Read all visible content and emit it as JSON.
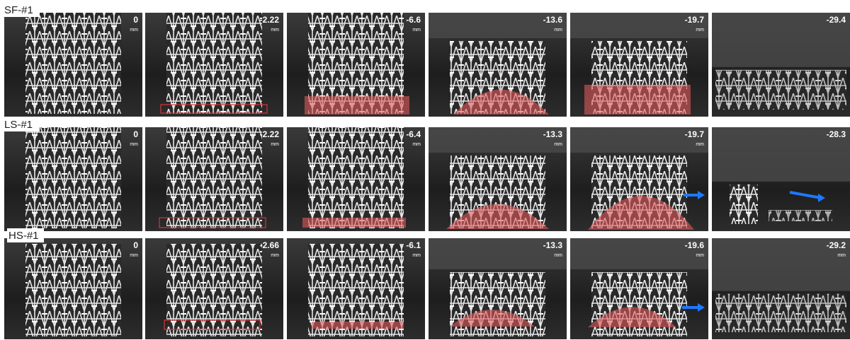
{
  "rows": [
    {
      "label": "SF-#1",
      "panels": [
        {
          "value": "0",
          "unit": "mm"
        },
        {
          "value": "-2.22",
          "unit": "mm"
        },
        {
          "value": "-6.6",
          "unit": "mm"
        },
        {
          "value": "-13.6",
          "unit": "mm"
        },
        {
          "value": "-19.7",
          "unit": "mm"
        },
        {
          "value": "-29.4"
        }
      ]
    },
    {
      "label": "LS-#1",
      "panels": [
        {
          "value": "0",
          "unit": "mm"
        },
        {
          "value": "-2.22",
          "unit": "mm"
        },
        {
          "value": "-6.4",
          "unit": "mm"
        },
        {
          "value": "-13.3",
          "unit": "mm"
        },
        {
          "value": "-19.7",
          "unit": "mm"
        },
        {
          "value": "-28.3"
        }
      ]
    },
    {
      "label": "HS-#1",
      "panels": [
        {
          "value": "0",
          "unit": "mm"
        },
        {
          "value": "-2.66",
          "unit": "mm"
        },
        {
          "value": "-6.1",
          "unit": "mm"
        },
        {
          "value": "-13.3",
          "unit": "mm"
        },
        {
          "value": "-19.6",
          "unit": "mm"
        },
        {
          "value": "-29.2",
          "unit": "mm"
        }
      ]
    }
  ]
}
